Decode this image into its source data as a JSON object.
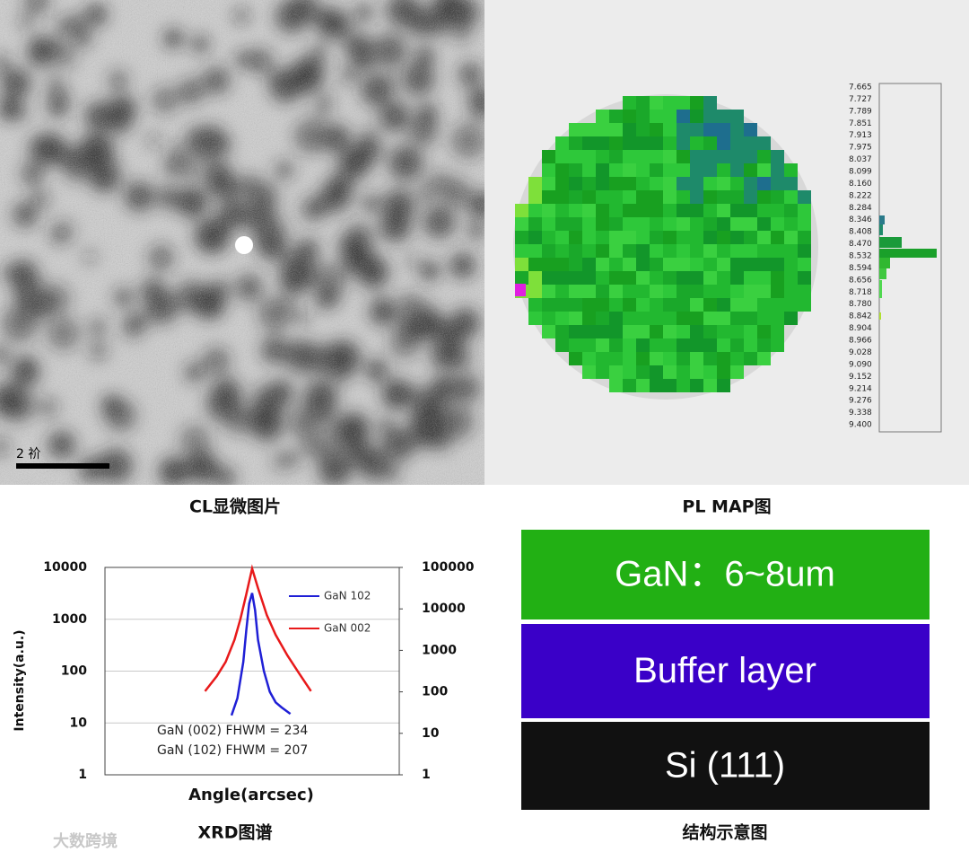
{
  "cl_panel": {
    "scale_label": "2 祄",
    "caption": "CL显微图片"
  },
  "pl_panel": {
    "caption": "PL MAP图",
    "scale_labels": [
      "7.665",
      "7.727",
      "7.789",
      "7.851",
      "7.913",
      "7.975",
      "8.037",
      "8.099",
      "8.160",
      "8.222",
      "8.284",
      "8.346",
      "8.408",
      "8.470",
      "8.532",
      "8.594",
      "8.656",
      "8.718",
      "8.780",
      "8.842",
      "8.904",
      "8.966",
      "9.028",
      "9.090",
      "9.152",
      "9.214",
      "9.276",
      "9.338",
      "9.400"
    ]
  },
  "chart_data": {
    "type": "line",
    "caption": "XRD图谱",
    "ylabel": "Intensity(a.u.)",
    "xlabel": "Angle(arcsec)",
    "annotations": [
      "GaN (002) FHWM = 234",
      "GaN (102) FHWM = 207"
    ],
    "log_y": true,
    "grid": true,
    "legend": "upper right",
    "xlim": [
      0,
      100
    ],
    "ylim": [
      1,
      10000
    ],
    "yticks": [
      1,
      10,
      100,
      1000,
      10000
    ],
    "y2lim": [
      1,
      100000
    ],
    "y2ticks": [
      1,
      10,
      100,
      1000,
      10000,
      100000
    ],
    "series": [
      {
        "name": "GaN 102",
        "color": "#1f1fd6",
        "x": [
          43,
          45,
          47,
          48,
          49,
          50,
          51,
          52,
          54,
          56,
          58,
          60,
          63
        ],
        "values": [
          14,
          30,
          150,
          600,
          2000,
          3200,
          1500,
          400,
          100,
          40,
          25,
          20,
          15
        ]
      },
      {
        "name": "GaN 002",
        "color": "#e8191a",
        "x": [
          34,
          38,
          41,
          44,
          46,
          48,
          50,
          52,
          55,
          58,
          62,
          66,
          70
        ],
        "values": [
          41,
          80,
          150,
          400,
          1000,
          3000,
          9500,
          4000,
          1200,
          500,
          200,
          90,
          41
        ]
      }
    ]
  },
  "structure": {
    "caption": "结构示意图",
    "layers": [
      {
        "label": "GaN：6~8um",
        "color": "#22b014"
      },
      {
        "label": "Buffer layer",
        "color": "#3a00c8"
      },
      {
        "label": "Si (111)",
        "color": "#111111"
      }
    ]
  },
  "watermark": "大数跨境"
}
